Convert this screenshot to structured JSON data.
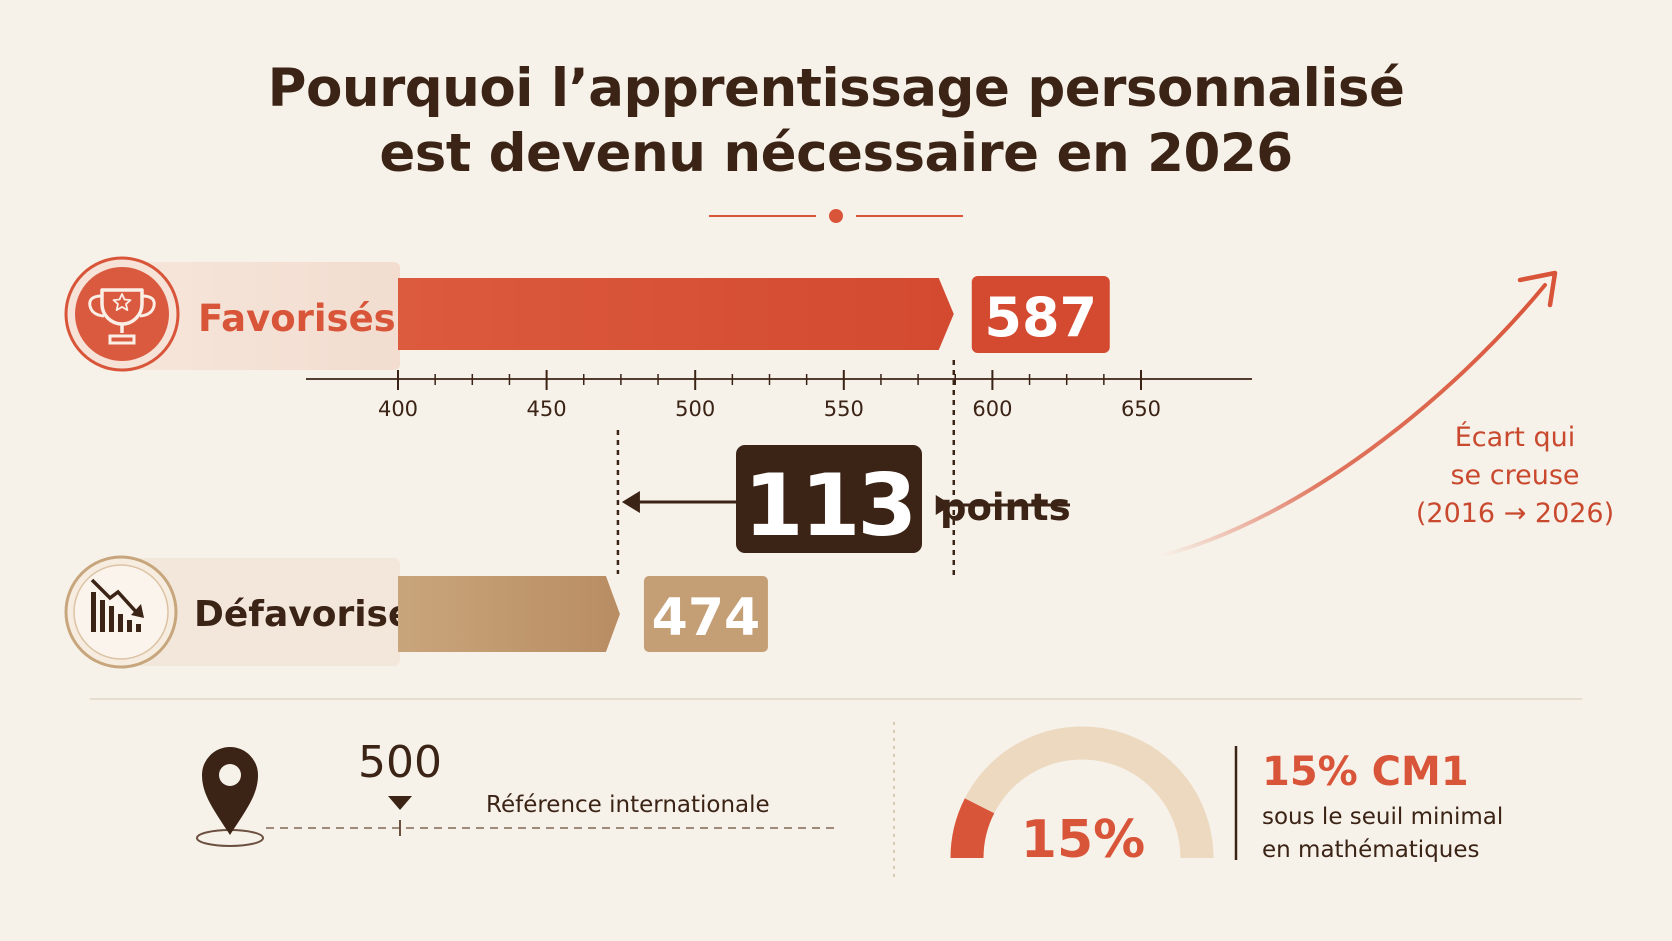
{
  "title": [
    "Pourquoi l’apprentissage personnalisé",
    "est devenu nécessaire en 2026"
  ],
  "colors": {
    "background": "#f7f2e9",
    "accent": "#d9553a",
    "accent_light": "#f6e3d8",
    "beige": "#c8a67d",
    "beige_light": "#f3e7dc",
    "dark": "#3b2316"
  },
  "chart_data": {
    "type": "bar",
    "orientation": "horizontal",
    "axis": {
      "min": 400,
      "max": 650,
      "ticks": [
        400,
        450,
        500,
        550,
        600,
        650
      ],
      "tick_labels": [
        "400",
        "450",
        "500",
        "550",
        "600",
        "650"
      ],
      "minor_step": 12.5
    },
    "series": [
      {
        "category": "Favorisés",
        "value": 587,
        "value_label": "587",
        "icon": "trophy-icon",
        "color": "#d9553a"
      },
      {
        "category": "Défavorisés",
        "value": 474,
        "value_label": "474",
        "icon": "declining-bar-chart-icon",
        "color": "#c8a67d"
      }
    ],
    "gap": {
      "value": 113,
      "value_label": "113",
      "unit": "points"
    },
    "trend_annotation": [
      "Écart qui",
      "se creuse",
      "(2016 → 2026)"
    ]
  },
  "reference": {
    "value_label": "500",
    "label": "Référence internationale",
    "icon": "location-pin-icon"
  },
  "gauge": {
    "percent": 15,
    "value_label": "15%",
    "headline": "15% CM1",
    "line1": "sous le seuil minimal",
    "line2": "en mathématiques"
  }
}
